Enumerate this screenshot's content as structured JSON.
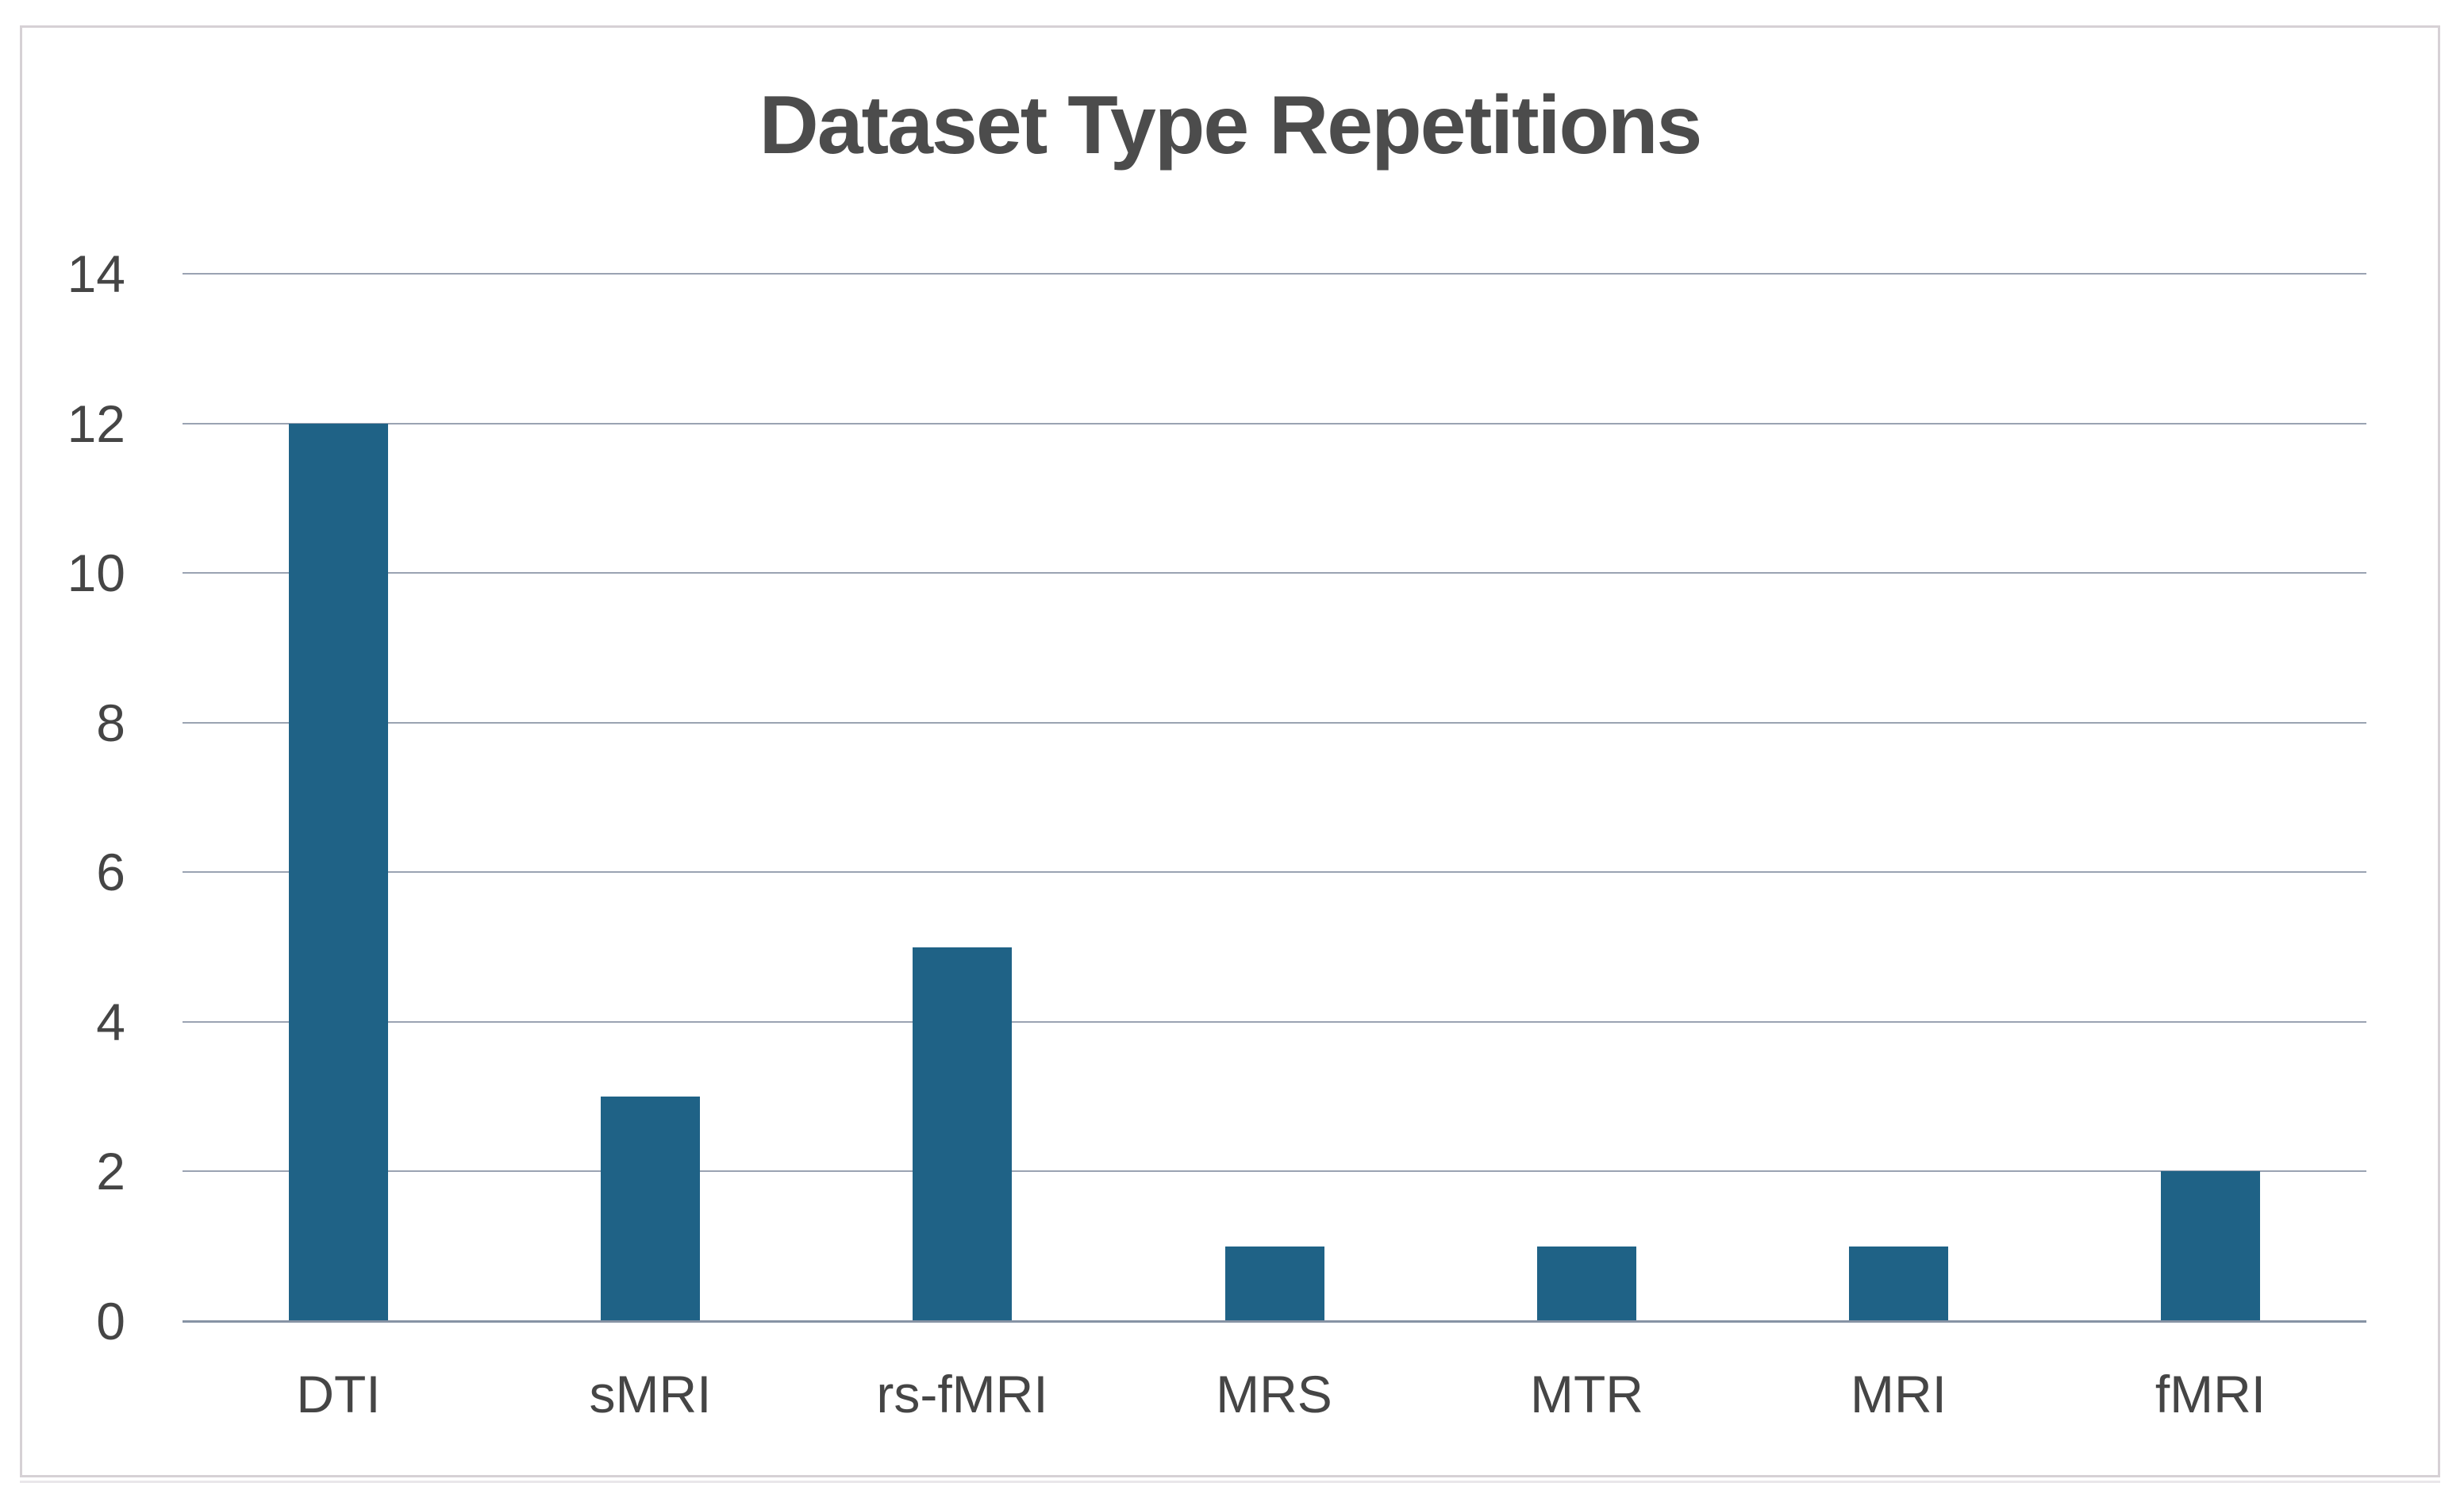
{
  "chart_data": {
    "type": "bar",
    "title": "Dataset Type Repetitions",
    "categories": [
      "DTI",
      "sMRI",
      "rs-fMRI",
      "MRS",
      "MTR",
      "MRI",
      "fMRI"
    ],
    "values": [
      12,
      3,
      5,
      1,
      1,
      1,
      2
    ],
    "xlabel": "",
    "ylabel": "",
    "ylim": [
      0,
      14
    ],
    "yticks": [
      0,
      2,
      4,
      6,
      8,
      10,
      12,
      14
    ],
    "grid": true,
    "legend": false,
    "colors": {
      "bar": "#1f6286",
      "gridline": "#9aa3b2",
      "axis_line": "#8793a4",
      "title_text": "#4c4c4c",
      "tick_text": "#454545",
      "frame_border": "#d6d1d5"
    }
  }
}
